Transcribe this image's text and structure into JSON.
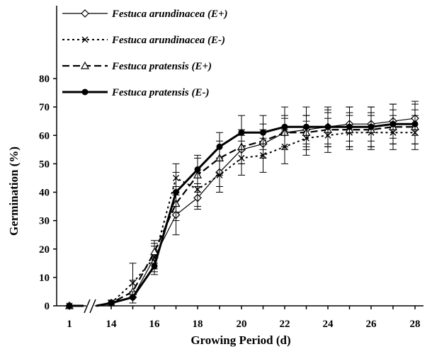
{
  "chart_data": {
    "type": "line",
    "xlabel": "Growing Period (d)",
    "ylabel": "Germination (%)",
    "ylim": [
      0,
      80
    ],
    "yticks": [
      "0",
      "10",
      "20",
      "30",
      "40",
      "50",
      "60",
      "70",
      "80"
    ],
    "xticks": [
      "1",
      "14",
      "16",
      "18",
      "20",
      "22",
      "24",
      "26",
      "28"
    ],
    "x_axis_break": "//",
    "grid": false,
    "legend_position": "top-left",
    "series": [
      {
        "name": "Festuca arundinacea (E+)",
        "line": "solid-thin",
        "marker": "open-diamond",
        "x": [
          1,
          14,
          15,
          16,
          17,
          18,
          19,
          20,
          21,
          22,
          23,
          24,
          25,
          26,
          27,
          28
        ],
        "y": [
          0,
          1,
          3,
          17,
          32,
          38,
          47,
          55,
          57,
          61,
          62,
          63,
          64,
          64,
          65,
          66
        ],
        "err": [
          0,
          1,
          2,
          4,
          7,
          4,
          5,
          5,
          5,
          5,
          5,
          6,
          6,
          6,
          6,
          6
        ]
      },
      {
        "name": "Festuca arundinacea (E-)",
        "line": "dotted",
        "marker": "x",
        "x": [
          1,
          14,
          15,
          16,
          17,
          18,
          19,
          20,
          21,
          22,
          23,
          24,
          25,
          26,
          27,
          28
        ],
        "y": [
          0,
          1,
          8,
          17,
          45,
          41,
          46,
          52,
          53,
          56,
          59,
          60,
          61,
          61,
          61,
          61
        ],
        "err": [
          0,
          1,
          7,
          5,
          5,
          6,
          6,
          6,
          6,
          6,
          6,
          6,
          6,
          6,
          6,
          6
        ]
      },
      {
        "name": "Festuca pratensis (E+)",
        "line": "dashed",
        "marker": "open-triangle",
        "x": [
          1,
          14,
          15,
          16,
          17,
          18,
          19,
          20,
          21,
          22,
          23,
          24,
          25,
          26,
          27,
          28
        ],
        "y": [
          0,
          1,
          5,
          19,
          36,
          46,
          52,
          56,
          58,
          61,
          61,
          62,
          62,
          62,
          63,
          63
        ],
        "err": [
          0,
          1,
          4,
          4,
          6,
          6,
          6,
          6,
          6,
          6,
          6,
          6,
          6,
          6,
          6,
          6
        ]
      },
      {
        "name": "Festuca pratensis (E-)",
        "line": "solid-thick",
        "marker": "filled-circle",
        "x": [
          1,
          14,
          15,
          16,
          17,
          18,
          19,
          20,
          21,
          22,
          23,
          24,
          25,
          26,
          27,
          28
        ],
        "y": [
          0,
          1,
          3,
          14,
          40,
          48,
          56,
          61,
          61,
          63,
          63,
          63,
          63,
          63,
          64,
          64
        ],
        "err": [
          0,
          1,
          2,
          3,
          7,
          5,
          5,
          6,
          6,
          7,
          7,
          7,
          7,
          7,
          7,
          7
        ]
      }
    ]
  }
}
